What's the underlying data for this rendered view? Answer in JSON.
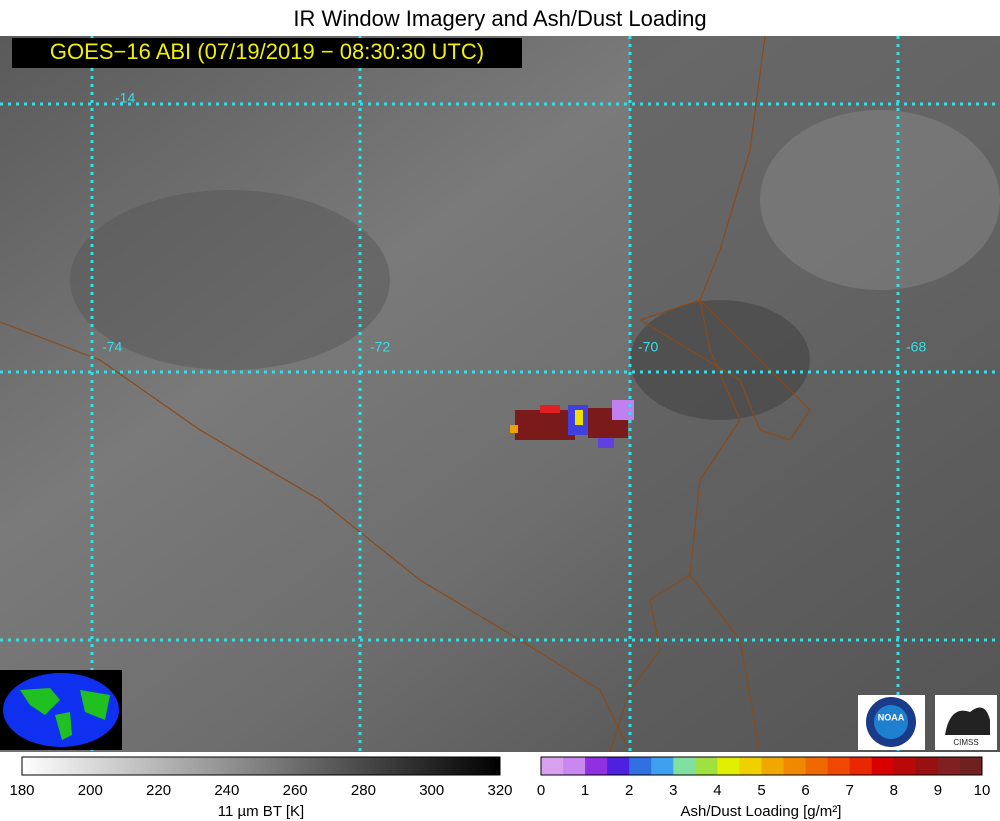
{
  "header": {
    "title": "IR Window Imagery and Ash/Dust Loading",
    "subtitle": "GOES−16 ABI (07/19/2019 − 08:30:30 UTC)"
  },
  "map": {
    "lat_labels": [
      "-14"
    ],
    "lon_labels": [
      "-74",
      "-72",
      "-70",
      "-68"
    ]
  },
  "colorbars": {
    "ir": {
      "ticks": [
        "180",
        "200",
        "220",
        "240",
        "260",
        "280",
        "300",
        "320"
      ],
      "label": "11 µm BT [K]"
    },
    "ash": {
      "ticks": [
        "0",
        "1",
        "2",
        "3",
        "4",
        "5",
        "6",
        "7",
        "8",
        "9",
        "10"
      ],
      "label": "Ash/Dust Loading [g/m²]"
    }
  },
  "logos": {
    "noaa": "NOAA",
    "cimss": "CIMSS"
  }
}
